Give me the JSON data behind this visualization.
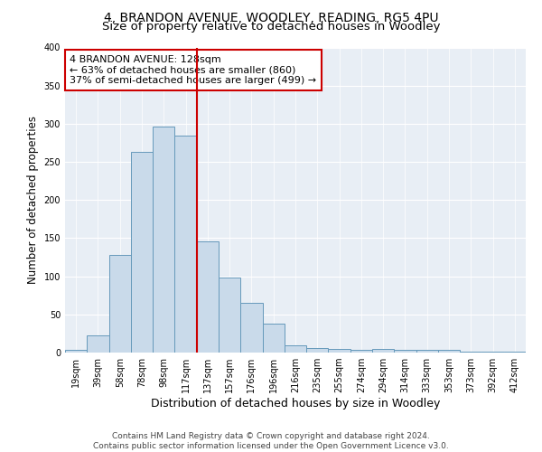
{
  "title": "4, BRANDON AVENUE, WOODLEY, READING, RG5 4PU",
  "subtitle": "Size of property relative to detached houses in Woodley",
  "xlabel": "Distribution of detached houses by size in Woodley",
  "ylabel": "Number of detached properties",
  "bar_labels": [
    "19sqm",
    "39sqm",
    "58sqm",
    "78sqm",
    "98sqm",
    "117sqm",
    "137sqm",
    "157sqm",
    "176sqm",
    "196sqm",
    "216sqm",
    "235sqm",
    "255sqm",
    "274sqm",
    "294sqm",
    "314sqm",
    "333sqm",
    "353sqm",
    "373sqm",
    "392sqm",
    "412sqm"
  ],
  "bar_values": [
    3,
    22,
    128,
    263,
    296,
    284,
    146,
    98,
    65,
    38,
    9,
    6,
    5,
    4,
    5,
    4,
    4,
    3,
    1,
    1,
    1
  ],
  "bar_color": "#c9daea",
  "bar_edge_color": "#6699bb",
  "vline_x": 5.5,
  "vline_color": "#cc0000",
  "annotation_line1": "4 BRANDON AVENUE: 128sqm",
  "annotation_line2": "← 63% of detached houses are smaller (860)",
  "annotation_line3": "37% of semi-detached houses are larger (499) →",
  "annotation_box_color": "#ffffff",
  "annotation_box_edge": "#cc0000",
  "ylim": [
    0,
    400
  ],
  "yticks": [
    0,
    50,
    100,
    150,
    200,
    250,
    300,
    350,
    400
  ],
  "fig_bg_color": "#ffffff",
  "axes_bg_color": "#e8eef5",
  "grid_color": "#ffffff",
  "footnote": "Contains HM Land Registry data © Crown copyright and database right 2024.\nContains public sector information licensed under the Open Government Licence v3.0.",
  "title_fontsize": 10,
  "subtitle_fontsize": 9.5,
  "xlabel_fontsize": 9,
  "ylabel_fontsize": 8.5,
  "tick_fontsize": 7,
  "annot_fontsize": 8,
  "footnote_fontsize": 6.5
}
